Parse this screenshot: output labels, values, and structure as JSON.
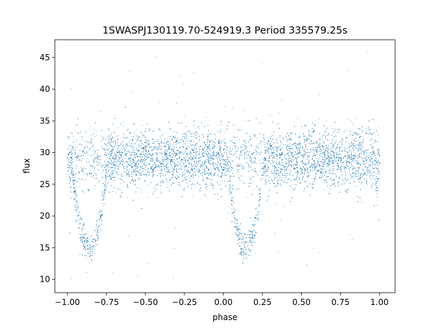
{
  "chart_data": {
    "type": "scatter",
    "title": "1SWASPJ130119.70-524919.3 Period 335579.25s",
    "xlabel": "phase",
    "ylabel": "flux",
    "xlim": [
      -1.08,
      1.1
    ],
    "ylim": [
      7.9,
      47.8
    ],
    "xticks": [
      -1.0,
      -0.75,
      -0.5,
      -0.25,
      0.0,
      0.25,
      0.5,
      0.75,
      1.0
    ],
    "xtick_labels": [
      "−1.00",
      "−0.75",
      "−0.50",
      "−0.25",
      "0.00",
      "0.25",
      "0.50",
      "0.75",
      "1.00"
    ],
    "yticks": [
      10,
      15,
      20,
      25,
      30,
      35,
      40,
      45
    ],
    "ytick_labels": [
      "10",
      "15",
      "20",
      "25",
      "30",
      "35",
      "40",
      "45"
    ],
    "grid": false,
    "point_color": "#1f77b4",
    "baseline_flux": 29,
    "baseline_scatter": 2.3,
    "eclipse_minima": [
      {
        "phase": -0.86,
        "flux": 15
      },
      {
        "phase": 0.14,
        "flux": 15
      }
    ],
    "eclipse_half_width": 0.12,
    "phase_range": [
      -1.0,
      1.0
    ],
    "outlier_range": [
      9.5,
      46
    ]
  }
}
